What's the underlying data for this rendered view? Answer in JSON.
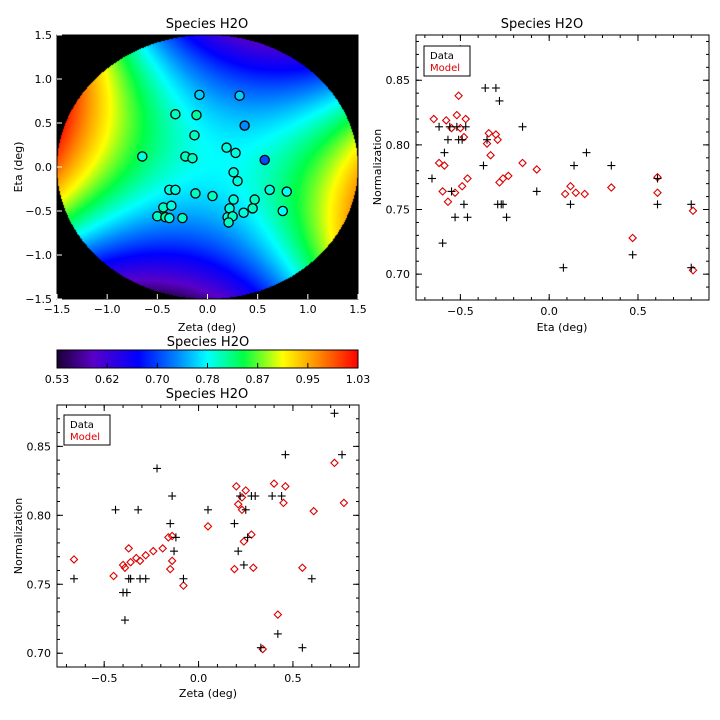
{
  "colors": {
    "data": "#000000",
    "model": "#dd0000",
    "frame": "#000000",
    "outside_map": "#000000"
  },
  "colorbar": {
    "title": "Species H2O",
    "ticks": [
      "0.53",
      "0.62",
      "0.70",
      "0.78",
      "0.87",
      "0.95",
      "1.03"
    ],
    "colormap": "rainbow",
    "range": [
      0.53,
      1.03
    ]
  },
  "chart_data": [
    {
      "id": "map",
      "type": "heatmap",
      "title": "Species H2O",
      "xlabel": "Zeta (deg)",
      "ylabel": "Eta (deg)",
      "xlim": [
        -1.5,
        1.5
      ],
      "ylim": [
        -1.5,
        1.5
      ],
      "xticks": [
        "−1.5",
        "−1.0",
        "−0.5",
        "0.0",
        "0.5",
        "1.0",
        "1.5"
      ],
      "yticks": [
        "−1.5",
        "−1.0",
        "−0.5",
        "0.0",
        "0.5",
        "1.0",
        "1.5"
      ],
      "field_radius_deg": 1.5,
      "points": [
        {
          "x": -0.08,
          "y": 0.82,
          "v": 0.76
        },
        {
          "x": 0.32,
          "y": 0.81,
          "v": 0.76
        },
        {
          "x": -0.32,
          "y": 0.6,
          "v": 0.8
        },
        {
          "x": -0.11,
          "y": 0.59,
          "v": 0.81
        },
        {
          "x": 0.37,
          "y": 0.47,
          "v": 0.73
        },
        {
          "x": -0.13,
          "y": 0.36,
          "v": 0.8
        },
        {
          "x": -0.65,
          "y": 0.12,
          "v": 0.79
        },
        {
          "x": -0.22,
          "y": 0.12,
          "v": 0.8
        },
        {
          "x": -0.15,
          "y": 0.1,
          "v": 0.8
        },
        {
          "x": 0.19,
          "y": 0.22,
          "v": 0.79
        },
        {
          "x": 0.28,
          "y": 0.16,
          "v": 0.79
        },
        {
          "x": 0.57,
          "y": 0.08,
          "v": 0.7
        },
        {
          "x": 0.26,
          "y": -0.06,
          "v": 0.79
        },
        {
          "x": 0.3,
          "y": -0.16,
          "v": 0.79
        },
        {
          "x": -0.38,
          "y": -0.26,
          "v": 0.79
        },
        {
          "x": -0.32,
          "y": -0.26,
          "v": 0.79
        },
        {
          "x": -0.12,
          "y": -0.3,
          "v": 0.8
        },
        {
          "x": 0.62,
          "y": -0.26,
          "v": 0.79
        },
        {
          "x": 0.79,
          "y": -0.28,
          "v": 0.78
        },
        {
          "x": 0.05,
          "y": -0.33,
          "v": 0.8
        },
        {
          "x": 0.26,
          "y": -0.37,
          "v": 0.79
        },
        {
          "x": 0.47,
          "y": -0.37,
          "v": 0.8
        },
        {
          "x": -0.44,
          "y": -0.46,
          "v": 0.8
        },
        {
          "x": -0.36,
          "y": -0.44,
          "v": 0.79
        },
        {
          "x": 0.22,
          "y": -0.47,
          "v": 0.79
        },
        {
          "x": 0.45,
          "y": -0.47,
          "v": 0.8
        },
        {
          "x": 0.75,
          "y": -0.5,
          "v": 0.78
        },
        {
          "x": 0.36,
          "y": -0.52,
          "v": 0.79
        },
        {
          "x": -0.5,
          "y": -0.56,
          "v": 0.8
        },
        {
          "x": -0.42,
          "y": -0.57,
          "v": 0.81
        },
        {
          "x": -0.38,
          "y": -0.58,
          "v": 0.79
        },
        {
          "x": -0.25,
          "y": -0.58,
          "v": 0.8
        },
        {
          "x": 0.2,
          "y": -0.57,
          "v": 0.79
        },
        {
          "x": 0.25,
          "y": -0.56,
          "v": 0.8
        },
        {
          "x": 0.21,
          "y": -0.63,
          "v": 0.8
        }
      ]
    },
    {
      "id": "eta",
      "type": "scatter",
      "title": "Species H2O",
      "xlabel": "Eta (deg)",
      "ylabel": "Normalization",
      "xlim": [
        -0.75,
        0.9
      ],
      "ylim": [
        0.68,
        0.885
      ],
      "xticks": [
        {
          "v": -0.5,
          "t": "−0.5"
        },
        {
          "v": 0.0,
          "t": "0.0"
        },
        {
          "v": 0.5,
          "t": "0.5"
        }
      ],
      "yticks": [
        {
          "v": 0.7,
          "t": "0.70"
        },
        {
          "v": 0.75,
          "t": "0.75"
        },
        {
          "v": 0.8,
          "t": "0.80"
        },
        {
          "v": 0.85,
          "t": "0.85"
        }
      ],
      "legend": {
        "position": "top-left",
        "entries": [
          "Data",
          "Model"
        ]
      },
      "series": [
        {
          "name": "Data",
          "marker": "plus",
          "points": [
            [
              -0.66,
              0.774
            ],
            [
              -0.62,
              0.814
            ],
            [
              -0.6,
              0.724
            ],
            [
              -0.59,
              0.794
            ],
            [
              -0.57,
              0.804
            ],
            [
              -0.56,
              0.814
            ],
            [
              -0.55,
              0.764
            ],
            [
              -0.53,
              0.744
            ],
            [
              -0.52,
              0.814
            ],
            [
              -0.51,
              0.804
            ],
            [
              -0.5,
              0.874
            ],
            [
              -0.49,
              0.804
            ],
            [
              -0.48,
              0.754
            ],
            [
              -0.47,
              0.814
            ],
            [
              -0.46,
              0.744
            ],
            [
              -0.37,
              0.784
            ],
            [
              -0.36,
              0.844
            ],
            [
              -0.35,
              0.804
            ],
            [
              -0.3,
              0.844
            ],
            [
              -0.29,
              0.754
            ],
            [
              -0.28,
              0.834
            ],
            [
              -0.27,
              0.754
            ],
            [
              -0.26,
              0.754
            ],
            [
              -0.24,
              0.744
            ],
            [
              -0.15,
              0.814
            ],
            [
              -0.07,
              0.764
            ],
            [
              0.08,
              0.705
            ],
            [
              0.12,
              0.754
            ],
            [
              0.14,
              0.784
            ],
            [
              0.21,
              0.794
            ],
            [
              0.35,
              0.784
            ],
            [
              0.47,
              0.715
            ],
            [
              0.61,
              0.774
            ],
            [
              0.61,
              0.754
            ],
            [
              0.8,
              0.754
            ],
            [
              0.8,
              0.705
            ]
          ]
        },
        {
          "name": "Model",
          "marker": "diamond",
          "points": [
            [
              -0.65,
              0.82
            ],
            [
              -0.62,
              0.786
            ],
            [
              -0.6,
              0.764
            ],
            [
              -0.59,
              0.784
            ],
            [
              -0.58,
              0.819
            ],
            [
              -0.57,
              0.756
            ],
            [
              -0.55,
              0.813
            ],
            [
              -0.53,
              0.763
            ],
            [
              -0.52,
              0.823
            ],
            [
              -0.51,
              0.838
            ],
            [
              -0.5,
              0.813
            ],
            [
              -0.49,
              0.768
            ],
            [
              -0.48,
              0.806
            ],
            [
              -0.47,
              0.82
            ],
            [
              -0.46,
              0.774
            ],
            [
              -0.35,
              0.801
            ],
            [
              -0.34,
              0.809
            ],
            [
              -0.33,
              0.792
            ],
            [
              -0.3,
              0.808
            ],
            [
              -0.29,
              0.804
            ],
            [
              -0.28,
              0.771
            ],
            [
              -0.26,
              0.774
            ],
            [
              -0.23,
              0.776
            ],
            [
              -0.15,
              0.786
            ],
            [
              -0.07,
              0.781
            ],
            [
              0.09,
              0.762
            ],
            [
              0.12,
              0.768
            ],
            [
              0.15,
              0.763
            ],
            [
              0.2,
              0.762
            ],
            [
              0.35,
              0.767
            ],
            [
              0.47,
              0.728
            ],
            [
              0.61,
              0.775
            ],
            [
              0.61,
              0.763
            ],
            [
              0.81,
              0.749
            ],
            [
              0.81,
              0.703
            ]
          ]
        }
      ]
    },
    {
      "id": "zeta",
      "type": "scatter",
      "title": "Species H2O",
      "xlabel": "Zeta (deg)",
      "ylabel": "Normalization",
      "xlim": [
        -0.75,
        0.85
      ],
      "ylim": [
        0.69,
        0.88
      ],
      "xticks": [
        {
          "v": -0.5,
          "t": "−0.5"
        },
        {
          "v": 0.0,
          "t": "0.0"
        },
        {
          "v": 0.5,
          "t": "0.5"
        }
      ],
      "yticks": [
        {
          "v": 0.7,
          "t": "0.70"
        },
        {
          "v": 0.75,
          "t": "0.75"
        },
        {
          "v": 0.8,
          "t": "0.80"
        },
        {
          "v": 0.85,
          "t": "0.85"
        }
      ],
      "legend": {
        "position": "top-left",
        "entries": [
          "Data",
          "Model"
        ]
      },
      "series": [
        {
          "name": "Data",
          "marker": "plus",
          "points": [
            [
              -0.66,
              0.754
            ],
            [
              -0.44,
              0.804
            ],
            [
              -0.4,
              0.744
            ],
            [
              -0.39,
              0.724
            ],
            [
              -0.38,
              0.744
            ],
            [
              -0.37,
              0.754
            ],
            [
              -0.36,
              0.754
            ],
            [
              -0.32,
              0.804
            ],
            [
              -0.31,
              0.754
            ],
            [
              -0.28,
              0.754
            ],
            [
              -0.22,
              0.834
            ],
            [
              -0.15,
              0.794
            ],
            [
              -0.14,
              0.814
            ],
            [
              -0.13,
              0.774
            ],
            [
              -0.12,
              0.784
            ],
            [
              -0.08,
              0.754
            ],
            [
              0.05,
              0.804
            ],
            [
              0.19,
              0.794
            ],
            [
              0.21,
              0.774
            ],
            [
              0.22,
              0.814
            ],
            [
              0.24,
              0.764
            ],
            [
              0.25,
              0.804
            ],
            [
              0.26,
              0.784
            ],
            [
              0.28,
              0.814
            ],
            [
              0.3,
              0.814
            ],
            [
              0.33,
              0.704
            ],
            [
              0.39,
              0.814
            ],
            [
              0.42,
              0.714
            ],
            [
              0.44,
              0.814
            ],
            [
              0.46,
              0.844
            ],
            [
              0.55,
              0.704
            ],
            [
              0.6,
              0.754
            ],
            [
              0.72,
              0.874
            ],
            [
              0.76,
              0.844
            ]
          ]
        },
        {
          "name": "Model",
          "marker": "diamond",
          "points": [
            [
              -0.66,
              0.768
            ],
            [
              -0.45,
              0.756
            ],
            [
              -0.4,
              0.764
            ],
            [
              -0.39,
              0.762
            ],
            [
              -0.37,
              0.776
            ],
            [
              -0.36,
              0.766
            ],
            [
              -0.33,
              0.769
            ],
            [
              -0.31,
              0.767
            ],
            [
              -0.28,
              0.771
            ],
            [
              -0.24,
              0.774
            ],
            [
              -0.19,
              0.776
            ],
            [
              -0.16,
              0.784
            ],
            [
              -0.15,
              0.761
            ],
            [
              -0.14,
              0.785
            ],
            [
              -0.14,
              0.767
            ],
            [
              -0.08,
              0.749
            ],
            [
              0.05,
              0.792
            ],
            [
              0.19,
              0.761
            ],
            [
              0.2,
              0.821
            ],
            [
              0.21,
              0.808
            ],
            [
              0.23,
              0.813
            ],
            [
              0.23,
              0.804
            ],
            [
              0.24,
              0.781
            ],
            [
              0.25,
              0.818
            ],
            [
              0.28,
              0.786
            ],
            [
              0.29,
              0.762
            ],
            [
              0.34,
              0.703
            ],
            [
              0.4,
              0.823
            ],
            [
              0.42,
              0.728
            ],
            [
              0.45,
              0.809
            ],
            [
              0.46,
              0.821
            ],
            [
              0.55,
              0.762
            ],
            [
              0.61,
              0.803
            ],
            [
              0.72,
              0.838
            ],
            [
              0.77,
              0.809
            ]
          ]
        }
      ]
    }
  ]
}
